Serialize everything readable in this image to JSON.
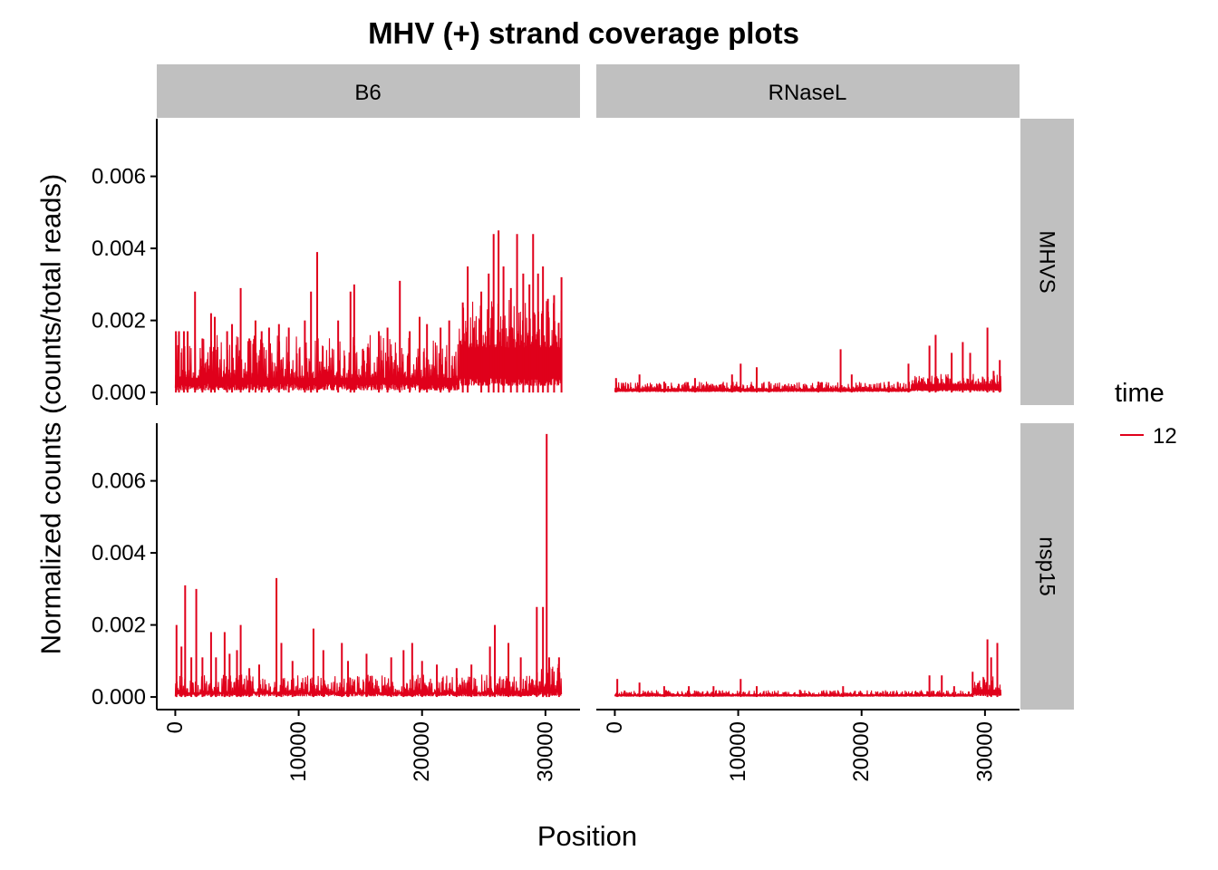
{
  "chart_data": {
    "type": "line",
    "title": "MHV (+) strand coverage plots",
    "xlabel": "Position",
    "ylabel": "Normalized counts (counts/total reads)",
    "xlim": [
      -1500,
      32800
    ],
    "ylim": [
      -0.00035,
      0.0076
    ],
    "xticks": [
      0,
      10000,
      20000,
      30000
    ],
    "yticks": [
      0.0,
      0.002,
      0.004,
      0.006
    ],
    "xtick_labels": [
      "0",
      "10000",
      "20000",
      "30000"
    ],
    "ytick_labels": [
      "0.000",
      "0.002",
      "0.004",
      "0.006"
    ],
    "columns": [
      "B6",
      "RNaseL"
    ],
    "rows": [
      "MHVS",
      "nsp15"
    ],
    "grid": false,
    "legend": {
      "title": "time",
      "position": "right",
      "entries": [
        {
          "label": "12",
          "color": "#e0001b"
        }
      ]
    },
    "series_color": "#e0001b",
    "genome_length": 31300,
    "panels": [
      {
        "column": "B6",
        "row": "MHVS",
        "series": "12",
        "baseline": 0.0007,
        "noise": 0.0012,
        "tail_from": 23000,
        "tail_baseline": 0.0016,
        "tail_noise": 0.0014,
        "peaks": [
          [
            50,
            0.0017
          ],
          [
            300,
            0.0017
          ],
          [
            700,
            0.0017
          ],
          [
            1000,
            0.0017
          ],
          [
            1600,
            0.0028
          ],
          [
            2200,
            0.0015
          ],
          [
            2900,
            0.0022
          ],
          [
            3200,
            0.0021
          ],
          [
            4200,
            0.0017
          ],
          [
            4600,
            0.0019
          ],
          [
            5300,
            0.0029
          ],
          [
            6000,
            0.0015
          ],
          [
            6500,
            0.002
          ],
          [
            7000,
            0.0017
          ],
          [
            7600,
            0.0018
          ],
          [
            8400,
            0.0019
          ],
          [
            9200,
            0.0018
          ],
          [
            10500,
            0.002
          ],
          [
            11000,
            0.0028
          ],
          [
            11500,
            0.0039
          ],
          [
            13200,
            0.002
          ],
          [
            14200,
            0.0028
          ],
          [
            14500,
            0.003
          ],
          [
            16500,
            0.0017
          ],
          [
            17200,
            0.0018
          ],
          [
            18200,
            0.0031
          ],
          [
            19000,
            0.0017
          ],
          [
            19800,
            0.0021
          ],
          [
            20400,
            0.0019
          ],
          [
            21500,
            0.0018
          ],
          [
            22200,
            0.002
          ],
          [
            23300,
            0.0025
          ],
          [
            23700,
            0.0035
          ],
          [
            24800,
            0.0028
          ],
          [
            25400,
            0.0033
          ],
          [
            25800,
            0.0044
          ],
          [
            26200,
            0.0045
          ],
          [
            26600,
            0.0035
          ],
          [
            27200,
            0.0029
          ],
          [
            27700,
            0.0044
          ],
          [
            28200,
            0.0033
          ],
          [
            28700,
            0.003
          ],
          [
            29000,
            0.0044
          ],
          [
            29400,
            0.0033
          ],
          [
            29800,
            0.0035
          ],
          [
            30200,
            0.0026
          ],
          [
            30700,
            0.0027
          ],
          [
            31300,
            0.0032
          ]
        ]
      },
      {
        "column": "RNaseL",
        "row": "MHVS",
        "series": "12",
        "baseline": 0.00015,
        "noise": 0.0002,
        "tail_from": 24000,
        "tail_baseline": 0.0003,
        "tail_noise": 0.0003,
        "peaks": [
          [
            100,
            0.0004
          ],
          [
            2000,
            0.0005
          ],
          [
            4000,
            0.0003
          ],
          [
            6500,
            0.0004
          ],
          [
            9500,
            0.0005
          ],
          [
            10200,
            0.0008
          ],
          [
            11500,
            0.0007
          ],
          [
            12500,
            0.0003
          ],
          [
            16500,
            0.0003
          ],
          [
            18300,
            0.0012
          ],
          [
            19200,
            0.0005
          ],
          [
            22200,
            0.0003
          ],
          [
            23800,
            0.0008
          ],
          [
            25500,
            0.0013
          ],
          [
            26000,
            0.0016
          ],
          [
            27300,
            0.0011
          ],
          [
            28200,
            0.0014
          ],
          [
            28800,
            0.0011
          ],
          [
            30200,
            0.0018
          ],
          [
            30700,
            0.0006
          ],
          [
            31200,
            0.0009
          ]
        ]
      },
      {
        "column": "B6",
        "row": "nsp15",
        "series": "12",
        "baseline": 0.00025,
        "noise": 0.0005,
        "tail_from": 29000,
        "tail_baseline": 0.0004,
        "tail_noise": 0.0007,
        "peaks": [
          [
            100,
            0.002
          ],
          [
            500,
            0.0014
          ],
          [
            800,
            0.0031
          ],
          [
            1300,
            0.0011
          ],
          [
            1700,
            0.003
          ],
          [
            2200,
            0.0011
          ],
          [
            2900,
            0.0018
          ],
          [
            3300,
            0.0011
          ],
          [
            4000,
            0.0018
          ],
          [
            4400,
            0.0012
          ],
          [
            5000,
            0.0013
          ],
          [
            5300,
            0.002
          ],
          [
            6000,
            0.0008
          ],
          [
            6800,
            0.0009
          ],
          [
            8200,
            0.0033
          ],
          [
            8600,
            0.0015
          ],
          [
            9500,
            0.001
          ],
          [
            11200,
            0.0019
          ],
          [
            12000,
            0.0013
          ],
          [
            13500,
            0.0015
          ],
          [
            14000,
            0.001
          ],
          [
            15500,
            0.0012
          ],
          [
            17500,
            0.0011
          ],
          [
            18500,
            0.0013
          ],
          [
            19200,
            0.0015
          ],
          [
            20000,
            0.001
          ],
          [
            21200,
            0.0009
          ],
          [
            22800,
            0.0008
          ],
          [
            24000,
            0.0009
          ],
          [
            25500,
            0.0014
          ],
          [
            25900,
            0.002
          ],
          [
            27000,
            0.0015
          ],
          [
            28000,
            0.0011
          ],
          [
            29300,
            0.0025
          ],
          [
            29800,
            0.0025
          ],
          [
            30100,
            0.0073
          ],
          [
            30300,
            0.0011
          ],
          [
            31100,
            0.0011
          ]
        ]
      },
      {
        "column": "RNaseL",
        "row": "nsp15",
        "series": "12",
        "baseline": 0.0001,
        "noise": 0.00012,
        "tail_from": 29000,
        "tail_baseline": 0.0003,
        "tail_noise": 0.0004,
        "peaks": [
          [
            200,
            0.0005
          ],
          [
            2000,
            0.0004
          ],
          [
            4000,
            0.0003
          ],
          [
            6000,
            0.0003
          ],
          [
            8000,
            0.0003
          ],
          [
            10200,
            0.0005
          ],
          [
            11500,
            0.0003
          ],
          [
            15000,
            0.0002
          ],
          [
            18500,
            0.0003
          ],
          [
            25500,
            0.0006
          ],
          [
            26500,
            0.0006
          ],
          [
            27500,
            0.0003
          ],
          [
            29000,
            0.0007
          ],
          [
            30200,
            0.0016
          ],
          [
            30500,
            0.0011
          ],
          [
            31000,
            0.0015
          ]
        ]
      }
    ]
  }
}
